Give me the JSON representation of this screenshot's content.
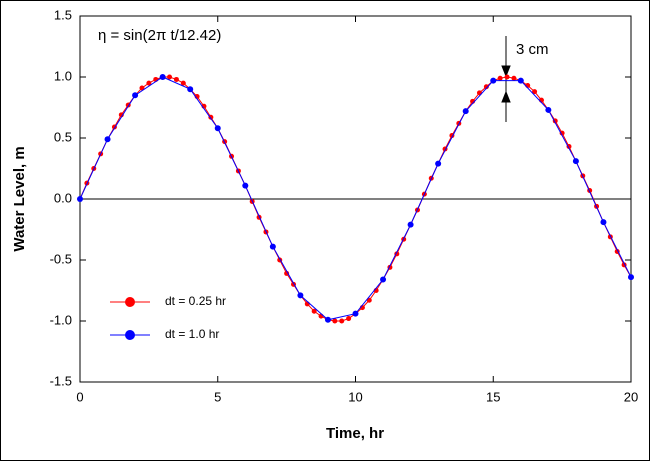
{
  "chart_data": {
    "type": "line",
    "xlabel": "Time, hr",
    "ylabel": "Water Level, m",
    "annotations": [
      "η = sin(2π t/12.42)",
      "3 cm"
    ],
    "xlim": [
      0,
      20
    ],
    "xticks": [
      0,
      5,
      10,
      15,
      20
    ],
    "ylim": [
      -1.5,
      1.5
    ],
    "yticks": [
      -1.5,
      {
        "value": -1,
        "label": "-1.0"
      },
      -0.5,
      {
        "value": 0,
        "label": "0.0"
      },
      0.5,
      {
        "value": 1,
        "label": "1.0"
      },
      1.5
    ],
    "hline": 0,
    "legend": "lower left",
    "series": [
      {
        "name": "dt = 0.25 hr",
        "color": "#ff0000",
        "x": [
          0,
          0.25,
          0.5,
          0.75,
          1,
          1.25,
          1.5,
          1.75,
          2,
          2.25,
          2.5,
          2.75,
          3,
          3.25,
          3.5,
          3.75,
          4,
          4.25,
          4.5,
          4.75,
          5,
          5.25,
          5.5,
          5.75,
          6,
          6.25,
          6.5,
          6.75,
          7,
          7.25,
          7.5,
          7.75,
          8,
          8.25,
          8.5,
          8.75,
          9,
          9.25,
          9.5,
          9.75,
          10,
          10.25,
          10.5,
          10.75,
          11,
          11.25,
          11.5,
          11.75,
          12,
          12.25,
          12.5,
          12.75,
          13,
          13.25,
          13.5,
          13.75,
          14,
          14.25,
          14.5,
          14.75,
          15,
          15.25,
          15.5,
          15.75,
          16,
          16.25,
          16.5,
          16.75,
          17,
          17.25,
          17.5,
          17.75,
          18,
          18.25,
          18.5,
          18.75,
          19,
          19.25,
          19.5,
          19.75,
          20
        ],
        "values": [
          0,
          0.13,
          0.25,
          0.37,
          0.49,
          0.59,
          0.69,
          0.77,
          0.85,
          0.91,
          0.95,
          0.98,
          1.0,
          1.0,
          0.98,
          0.95,
          0.9,
          0.84,
          0.76,
          0.67,
          0.58,
          0.47,
          0.35,
          0.23,
          0.11,
          -0.02,
          -0.15,
          -0.27,
          -0.39,
          -0.5,
          -0.61,
          -0.7,
          -0.79,
          -0.86,
          -0.92,
          -0.96,
          -0.99,
          -1.0,
          -1.0,
          -0.98,
          -0.94,
          -0.89,
          -0.83,
          -0.75,
          -0.66,
          -0.56,
          -0.45,
          -0.33,
          -0.21,
          -0.09,
          0.04,
          0.17,
          0.29,
          0.41,
          0.52,
          0.62,
          0.72,
          0.8,
          0.87,
          0.92,
          0.97,
          0.99,
          1.0,
          0.99,
          0.97,
          0.93,
          0.88,
          0.81,
          0.73,
          0.64,
          0.54,
          0.43,
          0.31,
          0.19,
          0.07,
          -0.06,
          -0.19,
          -0.31,
          -0.43,
          -0.54,
          -0.64
        ]
      },
      {
        "name": "dt = 1.0 hr",
        "color": "#0000ff",
        "x": [
          0,
          1,
          2,
          3,
          4,
          5,
          6,
          7,
          8,
          9,
          10,
          11,
          12,
          13,
          14,
          15,
          16,
          17,
          18,
          19,
          20
        ],
        "values": [
          0,
          0.49,
          0.85,
          1.0,
          0.9,
          0.58,
          0.11,
          -0.39,
          -0.79,
          -0.99,
          -0.94,
          -0.66,
          -0.21,
          0.29,
          0.72,
          0.97,
          0.97,
          0.73,
          0.31,
          -0.19,
          -0.64
        ]
      }
    ]
  }
}
